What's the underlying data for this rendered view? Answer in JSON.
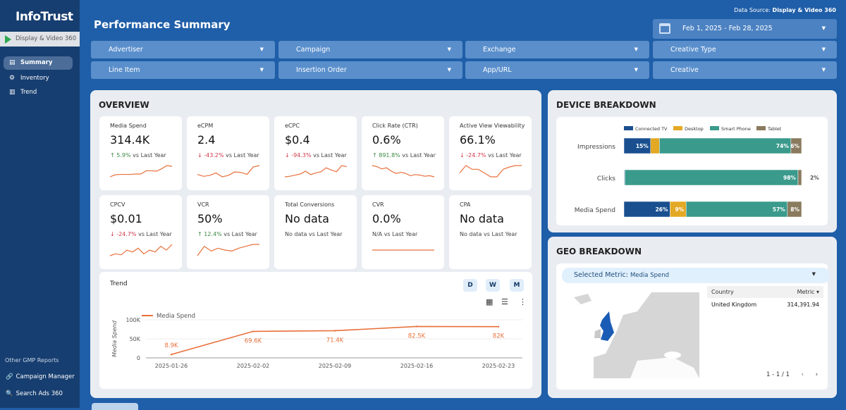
{
  "sidebar": {
    "logo": "InfoTrust",
    "product": "Display & Video 360",
    "items": [
      {
        "label": "Summary",
        "icon": "document-icon",
        "active": true
      },
      {
        "label": "Inventory",
        "icon": "inventory-icon"
      },
      {
        "label": "Trend",
        "icon": "bar-chart-icon"
      }
    ],
    "other_heading": "Other GMP Reports",
    "other": [
      {
        "label": "Campaign Manager",
        "icon": "link-icon"
      },
      {
        "label": "Search Ads 360",
        "icon": "search-icon"
      }
    ]
  },
  "header": {
    "title": "Performance Summary",
    "source_label": "Data Source:",
    "source_value": "Display & Video 360",
    "date_range": "Feb 1, 2025 - Feb 28, 2025"
  },
  "filters": [
    "Advertiser",
    "Campaign",
    "Exchange",
    "Creative Type",
    "Line Item",
    "Insertion Order",
    "App/URL",
    "Creative"
  ],
  "overview": {
    "title": "OVERVIEW",
    "cards": [
      {
        "label": "Media Spend",
        "value": "314.4K",
        "change": "5.9%",
        "dir": "up",
        "suffix": " vs Last Year",
        "spark": [
          3,
          3.5,
          3.6,
          3.6,
          3.6,
          3.7,
          3.7,
          4.5,
          4.5,
          4.4,
          5,
          5.8,
          5.6
        ]
      },
      {
        "label": "eCPM",
        "value": "2.4",
        "change": "-43.2%",
        "dir": "down",
        "suffix": " vs Last Year",
        "spark": [
          3,
          2.6,
          2.8,
          3.3,
          2.5,
          2.8,
          3.5,
          3.4,
          3,
          4.5,
          4.8
        ]
      },
      {
        "label": "eCPC",
        "value": "$0.4",
        "change": "-94.3%",
        "dir": "down",
        "suffix": " vs Last Year",
        "spark": [
          2,
          2.5,
          3.5,
          4.5,
          7,
          4,
          5.5,
          6.5,
          10,
          8,
          6.5,
          12,
          11
        ]
      },
      {
        "label": "Click Rate (CTR)",
        "value": "0.6%",
        "change": "891.8%",
        "dir": "up",
        "suffix": " vs Last Year",
        "spark": [
          10,
          9,
          7,
          8,
          5,
          3,
          4,
          3,
          1,
          2,
          1.5,
          0.5,
          1,
          0
        ]
      },
      {
        "label": "Active View Viewability",
        "value": "66.1%",
        "change": "-24.7%",
        "dir": "down",
        "suffix": " vs Last Year",
        "spark": [
          3,
          4,
          3.5,
          3.5,
          3,
          2.5,
          2.5,
          3.5,
          3.8,
          4,
          4
        ]
      },
      {
        "label": "CPCV",
        "value": "$0.01",
        "change": "-24.7%",
        "dir": "down",
        "suffix": " vs Last Year",
        "spark": [
          2,
          3,
          2.5,
          5,
          4,
          6,
          3,
          5,
          4,
          7,
          5,
          8
        ]
      },
      {
        "label": "VCR",
        "value": "50%",
        "change": "12.4%",
        "dir": "up",
        "suffix": " vs Last Year",
        "spark": [
          3,
          4,
          3.5,
          3.8,
          3.6,
          3.5,
          3.8,
          4,
          4.2,
          4.2
        ]
      },
      {
        "label": "Total Conversions",
        "value": "No data",
        "change": "No data",
        "dir": "none",
        "suffix": " vs Last Year",
        "spark": []
      },
      {
        "label": "CVR",
        "value": "0.0%",
        "change": "N/A",
        "dir": "none",
        "suffix": " vs Last Year",
        "spark": [
          3,
          3
        ]
      },
      {
        "label": "CPA",
        "value": "No data",
        "change": "No data",
        "dir": "none",
        "suffix": " vs Last Year",
        "spark": []
      }
    ]
  },
  "trend": {
    "title": "Trend",
    "granularity": [
      "D",
      "W",
      "M"
    ],
    "chart_data": {
      "type": "line",
      "x": [
        "2025-01-26",
        "2025-02-02",
        "2025-02-09",
        "2025-02-16",
        "2025-02-23"
      ],
      "series": [
        {
          "name": "Media Spend",
          "values": [
            8900,
            69600,
            71400,
            82500,
            82000
          ],
          "labels": [
            "8.9K",
            "69.6K",
            "71.4K",
            "82.5K",
            "82K"
          ]
        }
      ],
      "ylabel": "Media Spend",
      "yticks": [
        "0",
        "50K",
        "100K"
      ],
      "ylim": [
        0,
        100000
      ],
      "color": "#e8703a",
      "grid": true,
      "legend": "top-left"
    }
  },
  "device": {
    "title": "DEVICE BREAKDOWN",
    "chart_data": {
      "type": "bar",
      "stacked": true,
      "orientation": "horizontal",
      "legend": [
        "Connected TV",
        "Desktop",
        "Smart Phone",
        "Tablet"
      ],
      "colors": [
        "#1a4f8f",
        "#e3a824",
        "#3a9a8c",
        "#8a7a5e"
      ],
      "categories": [
        "Impressions",
        "Clicks",
        "Media Spend"
      ],
      "rows": [
        {
          "values": [
            15,
            5,
            74,
            6
          ],
          "labels": [
            "15%",
            "5%",
            "74%",
            "6%"
          ]
        },
        {
          "values": [
            0.3,
            0.2,
            97.5,
            2
          ],
          "labels": [
            "",
            "<0%",
            "98%",
            "2%"
          ]
        },
        {
          "values": [
            26,
            9,
            57,
            8
          ],
          "labels": [
            "26%",
            "9%",
            "57%",
            "8%"
          ]
        }
      ]
    }
  },
  "geo": {
    "title": "GEO BREAKDOWN",
    "selected_label": "Selected Metric:",
    "selected_value": "Media Spend",
    "table": {
      "headers": [
        "Country",
        "Metric"
      ],
      "rows": [
        [
          "United Kingdom",
          "314,391.94"
        ]
      ]
    },
    "pager": "1 - 1 / 1",
    "highlight_color": "#1a5bb5"
  }
}
